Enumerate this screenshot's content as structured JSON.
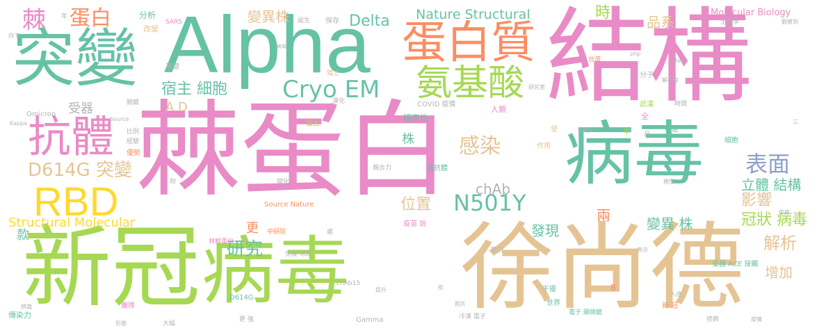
{
  "palette": {
    "pink": "#e98bc6",
    "teal": "#66c2a5",
    "orange": "#fc8d62",
    "green": "#a6d854",
    "tan": "#e5c494",
    "blue": "#8da0cb",
    "yellow": "#ffd92f",
    "grey": "#b3b3b3"
  },
  "words": [
    {
      "text": "棘蛋白",
      "color": "#e98bc6"
    },
    {
      "text": "結構",
      "color": "#e98bc6"
    },
    {
      "text": "Alpha",
      "color": "#66c2a5"
    },
    {
      "text": "新冠",
      "color": "#a6d854"
    },
    {
      "text": "病毒",
      "color": "#a6d854"
    },
    {
      "text": "徐尚德",
      "color": "#e5c494"
    },
    {
      "text": "突變",
      "color": "#66c2a5"
    },
    {
      "text": "病毒",
      "color": "#66c2a5"
    },
    {
      "text": "蛋白質",
      "color": "#fc8d62"
    },
    {
      "text": "抗體",
      "color": "#e98bc6"
    },
    {
      "text": "RBD",
      "color": "#ffd92f"
    },
    {
      "text": "氨基酸",
      "color": "#a6d854"
    },
    {
      "text": "Cryo EM",
      "color": "#66c2a5"
    },
    {
      "text": "棘",
      "color": "#e98bc6"
    },
    {
      "text": "蛋白",
      "color": "#fc8d62"
    },
    {
      "text": "N501Y",
      "color": "#66c2a5"
    },
    {
      "text": "D614G 突變",
      "color": "#e5c494"
    },
    {
      "text": "Delta",
      "color": "#66c2a5"
    },
    {
      "text": "Nature Structural",
      "color": "#66c2a5"
    },
    {
      "text": "感染",
      "color": "#e5c494"
    },
    {
      "text": "表面",
      "color": "#8da0cb"
    },
    {
      "text": "宿主 細胞",
      "color": "#66c2a5"
    },
    {
      "text": "變異株",
      "color": "#e5c494"
    },
    {
      "text": "品系",
      "color": "#e5c494"
    },
    {
      "text": "時",
      "color": "#a6d854"
    },
    {
      "text": "Structural Molecular",
      "color": "#ffd92f"
    },
    {
      "text": "立體 結構",
      "color": "#66c2a5"
    },
    {
      "text": "影響",
      "color": "#e5c494"
    },
    {
      "text": "冠狀 病毒",
      "color": "#a6d854"
    },
    {
      "text": "解析",
      "color": "#e5c494"
    },
    {
      "text": "變異 株",
      "color": "#66c2a5"
    },
    {
      "text": "研究",
      "color": "#66c2a5"
    },
    {
      "text": "位置",
      "color": "#e5c494"
    },
    {
      "text": "chAb",
      "color": "#b3b3b3"
    },
    {
      "text": "增加",
      "color": "#e5c494"
    },
    {
      "text": "發現",
      "color": "#66c2a5"
    },
    {
      "text": "A D",
      "color": "#e5c494"
    },
    {
      "text": "受器",
      "color": "#b3b3b3"
    },
    {
      "text": "兩",
      "color": "#fc8d62"
    },
    {
      "text": "Molecular Biology",
      "color": "#e98bc6"
    },
    {
      "text": "株",
      "color": "#66c2a5"
    },
    {
      "text": "更",
      "color": "#fc8d62"
    },
    {
      "text": "款",
      "color": "#66c2a5"
    },
    {
      "text": "穩定性",
      "color": "#66c2a5"
    },
    {
      "text": "分析",
      "color": "#66c2a5"
    },
    {
      "text": "改變",
      "color": "#e5c494"
    },
    {
      "text": "SARS",
      "color": "#e98bc6"
    },
    {
      "text": "基礎",
      "color": "#b3b3b3"
    },
    {
      "text": "保存",
      "color": "#b3b3b3"
    },
    {
      "text": "獨立",
      "color": "#e5c494"
    },
    {
      "text": "演化",
      "color": "#b3b3b3"
    },
    {
      "text": "COVID 疫情",
      "color": "#b3b3b3"
    },
    {
      "text": "人類",
      "color": "#e98bc6"
    },
    {
      "text": "台灣",
      "color": "#fc8d62"
    },
    {
      "text": "分子",
      "color": "#b3b3b3"
    },
    {
      "text": "武漢",
      "color": "#a6d854"
    },
    {
      "text": "Beta",
      "color": "#b3b3b3"
    },
    {
      "text": "Omicron",
      "color": "#b3b3b3"
    },
    {
      "text": "Kappa",
      "color": "#b3b3b3"
    },
    {
      "text": "Source",
      "color": "#b3b3b3"
    },
    {
      "text": "Source Nature",
      "color": "#fc8d62"
    },
    {
      "text": "Gamma",
      "color": "#b3b3b3"
    },
    {
      "text": "chAb15",
      "color": "#b3b3b3"
    },
    {
      "text": "受器 ACE 接觸",
      "color": "#66c2a5"
    },
    {
      "text": "免疫 系統",
      "color": "#b3b3b3"
    },
    {
      "text": "疫苗 說",
      "color": "#e98bc6"
    },
    {
      "text": "林鮮蛋白",
      "color": "#e98bc6"
    },
    {
      "text": "中研院",
      "color": "#fc8d62"
    },
    {
      "text": "親合力",
      "color": "#b3b3b3"
    },
    {
      "text": "造抗體",
      "color": "#66c2a5"
    },
    {
      "text": "變化",
      "color": "#b3b3b3"
    },
    {
      "text": "傳染力",
      "color": "#66c2a5"
    },
    {
      "text": "團隊",
      "color": "#e98bc6"
    },
    {
      "text": "D614G",
      "color": "#66c2a5"
    },
    {
      "text": "能力",
      "color": "#b3b3b3"
    },
    {
      "text": "干擾",
      "color": "#66c2a5"
    },
    {
      "text": "世界",
      "color": "#66c2a5"
    },
    {
      "text": "電子 顯微鏡",
      "color": "#66c2a5"
    },
    {
      "text": "冷凍 電子",
      "color": "#b3b3b3"
    },
    {
      "text": "新 冠",
      "color": "#fc8d62"
    },
    {
      "text": "大幅",
      "color": "#b3b3b3"
    },
    {
      "text": "形態",
      "color": "#b3b3b3"
    },
    {
      "text": "生物學",
      "color": "#b3b3b3"
    },
    {
      "text": "觀察到",
      "color": "#b3b3b3"
    },
    {
      "text": "穩定",
      "color": "#66c2a5"
    },
    {
      "text": "作用",
      "color": "#e5c494"
    },
    {
      "text": "中",
      "color": "#a6d854"
    },
    {
      "text": "全",
      "color": "#e98bc6"
    },
    {
      "text": "時間",
      "color": "#b3b3b3"
    },
    {
      "text": "細胞",
      "color": "#66c2a5"
    },
    {
      "text": "蛋白",
      "color": "#a6d854"
    },
    {
      "text": "關鍵",
      "color": "#b3b3b3"
    },
    {
      "text": "比例",
      "color": "#b3b3b3"
    },
    {
      "text": "經驗",
      "color": "#b3b3b3"
    },
    {
      "text": "優勢",
      "color": "#fc8d62"
    },
    {
      "text": "辨識",
      "color": "#b3b3b3"
    },
    {
      "text": "向下",
      "color": "#b3b3b3"
    },
    {
      "text": "年",
      "color": "#b3b3b3"
    },
    {
      "text": "誕生",
      "color": "#b3b3b3"
    },
    {
      "text": "研究室",
      "color": "#b3b3b3"
    },
    {
      "text": "解析度",
      "color": "#b3b3b3"
    },
    {
      "text": "模型",
      "color": "#b3b3b3"
    },
    {
      "text": "php",
      "color": "#b3b3b3"
    },
    {
      "text": "三",
      "color": "#b3b3b3"
    },
    {
      "text": "B",
      "color": "#fc8d62"
    },
    {
      "text": "更 強",
      "color": "#b3b3b3"
    },
    {
      "text": "病毒",
      "color": "#b3b3b3"
    },
    {
      "text": "附",
      "color": "#b3b3b3"
    },
    {
      "text": "處",
      "color": "#b3b3b3"
    },
    {
      "text": "入侵",
      "color": "#b3b3b3"
    },
    {
      "text": "有助於",
      "color": "#b3b3b3"
    },
    {
      "text": "使",
      "color": "#e5c494"
    },
    {
      "text": "月",
      "color": "#b3b3b3"
    },
    {
      "text": "依序",
      "color": "#b3b3b3"
    },
    {
      "text": "疫情",
      "color": "#b3b3b3"
    },
    {
      "text": "修飾",
      "color": "#b3b3b3"
    },
    {
      "text": "照片",
      "color": "#b3b3b3"
    },
    {
      "text": "提升",
      "color": "#b3b3b3"
    },
    {
      "text": "批",
      "color": "#b3b3b3"
    },
    {
      "text": "表示",
      "color": "#b3b3b3"
    }
  ]
}
